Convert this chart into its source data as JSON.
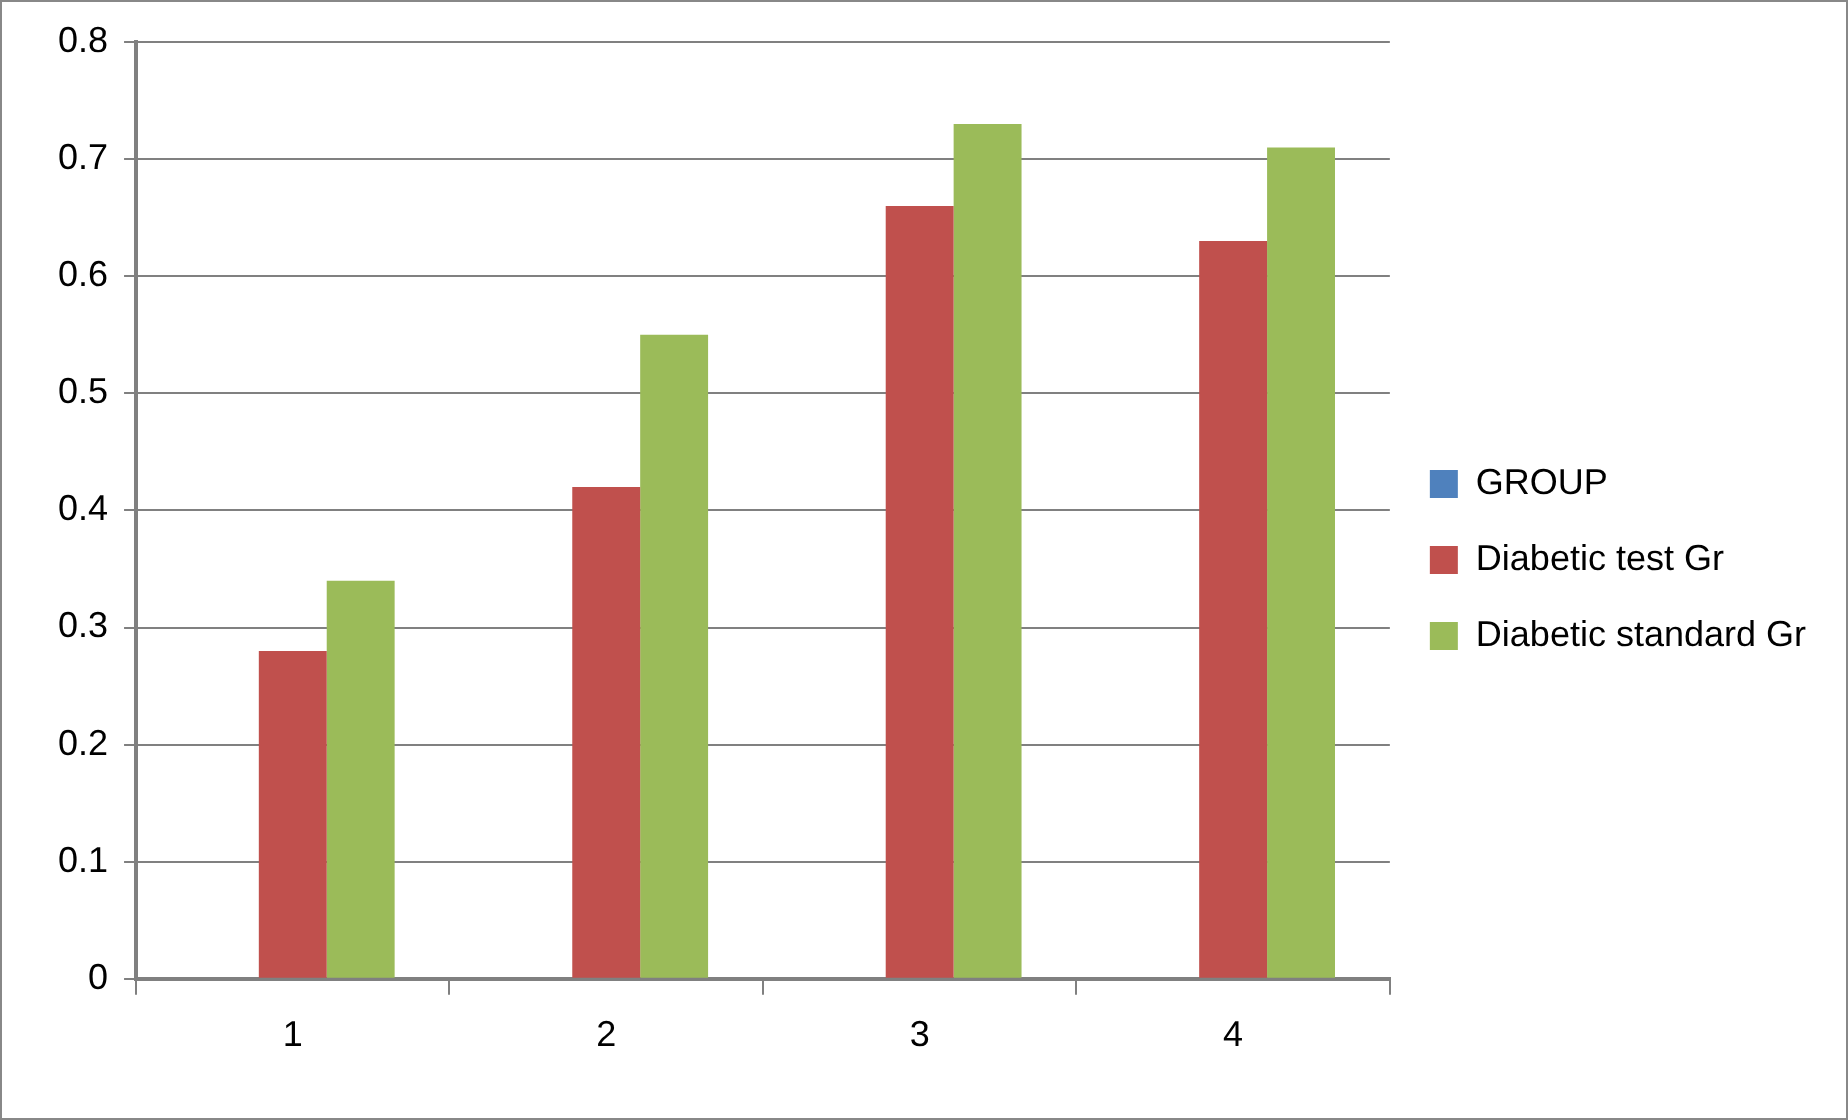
{
  "chart_data": {
    "type": "bar",
    "categories": [
      "1",
      "2",
      "3",
      "4"
    ],
    "series": [
      {
        "name": "GROUP",
        "color": "#4f81bd",
        "values": [
          null,
          null,
          null,
          null
        ]
      },
      {
        "name": "Diabetic test Gr",
        "color": "#c0504d",
        "values": [
          0.28,
          0.42,
          0.66,
          0.63
        ]
      },
      {
        "name": "Diabetic standard Gr",
        "color": "#9bbb59",
        "values": [
          0.34,
          0.55,
          0.73,
          0.71
        ]
      }
    ],
    "ylim": [
      0,
      0.8
    ],
    "yticks": [
      0,
      0.1,
      0.2,
      0.3,
      0.4,
      0.5,
      0.6,
      0.7,
      0.8
    ],
    "grid": "y",
    "legend": "right"
  }
}
